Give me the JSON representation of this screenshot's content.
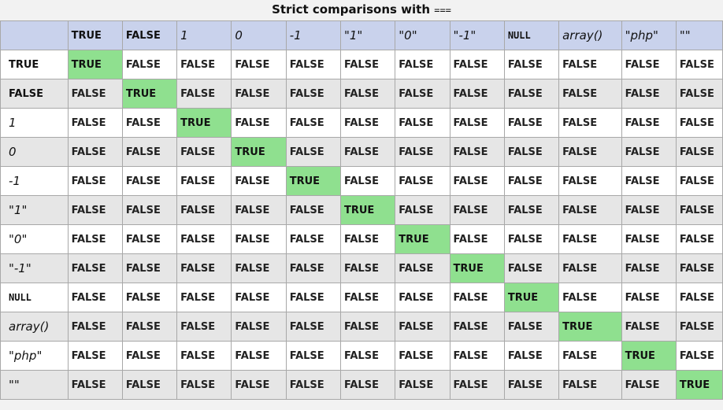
{
  "title": {
    "text": "Strict comparisons with ",
    "operator": "==="
  },
  "columns": [
    {
      "label": "TRUE",
      "style": "bold"
    },
    {
      "label": "FALSE",
      "style": "bold"
    },
    {
      "label": "1",
      "style": "italic"
    },
    {
      "label": "0",
      "style": "italic"
    },
    {
      "label": "-1",
      "style": "italic"
    },
    {
      "label": "\"1\"",
      "style": "italic"
    },
    {
      "label": "\"0\"",
      "style": "italic"
    },
    {
      "label": "\"-1\"",
      "style": "italic"
    },
    {
      "label": "NULL",
      "style": "mono"
    },
    {
      "label": "array()",
      "style": "italic"
    },
    {
      "label": "\"php\"",
      "style": "italic"
    },
    {
      "label": "\"\"",
      "style": "italic"
    }
  ],
  "rows": [
    {
      "label": "TRUE",
      "style": "bold",
      "values": [
        "TRUE",
        "FALSE",
        "FALSE",
        "FALSE",
        "FALSE",
        "FALSE",
        "FALSE",
        "FALSE",
        "FALSE",
        "FALSE",
        "FALSE",
        "FALSE"
      ]
    },
    {
      "label": "FALSE",
      "style": "bold",
      "values": [
        "FALSE",
        "TRUE",
        "FALSE",
        "FALSE",
        "FALSE",
        "FALSE",
        "FALSE",
        "FALSE",
        "FALSE",
        "FALSE",
        "FALSE",
        "FALSE"
      ]
    },
    {
      "label": "1",
      "style": "italic",
      "values": [
        "FALSE",
        "FALSE",
        "TRUE",
        "FALSE",
        "FALSE",
        "FALSE",
        "FALSE",
        "FALSE",
        "FALSE",
        "FALSE",
        "FALSE",
        "FALSE"
      ]
    },
    {
      "label": "0",
      "style": "italic",
      "values": [
        "FALSE",
        "FALSE",
        "FALSE",
        "TRUE",
        "FALSE",
        "FALSE",
        "FALSE",
        "FALSE",
        "FALSE",
        "FALSE",
        "FALSE",
        "FALSE"
      ]
    },
    {
      "label": "-1",
      "style": "italic",
      "values": [
        "FALSE",
        "FALSE",
        "FALSE",
        "FALSE",
        "TRUE",
        "FALSE",
        "FALSE",
        "FALSE",
        "FALSE",
        "FALSE",
        "FALSE",
        "FALSE"
      ]
    },
    {
      "label": "\"1\"",
      "style": "italic",
      "values": [
        "FALSE",
        "FALSE",
        "FALSE",
        "FALSE",
        "FALSE",
        "TRUE",
        "FALSE",
        "FALSE",
        "FALSE",
        "FALSE",
        "FALSE",
        "FALSE"
      ]
    },
    {
      "label": "\"0\"",
      "style": "italic",
      "values": [
        "FALSE",
        "FALSE",
        "FALSE",
        "FALSE",
        "FALSE",
        "FALSE",
        "TRUE",
        "FALSE",
        "FALSE",
        "FALSE",
        "FALSE",
        "FALSE"
      ]
    },
    {
      "label": "\"-1\"",
      "style": "italic",
      "values": [
        "FALSE",
        "FALSE",
        "FALSE",
        "FALSE",
        "FALSE",
        "FALSE",
        "FALSE",
        "TRUE",
        "FALSE",
        "FALSE",
        "FALSE",
        "FALSE"
      ]
    },
    {
      "label": "NULL",
      "style": "mono",
      "values": [
        "FALSE",
        "FALSE",
        "FALSE",
        "FALSE",
        "FALSE",
        "FALSE",
        "FALSE",
        "FALSE",
        "TRUE",
        "FALSE",
        "FALSE",
        "FALSE"
      ]
    },
    {
      "label": "array()",
      "style": "italic",
      "values": [
        "FALSE",
        "FALSE",
        "FALSE",
        "FALSE",
        "FALSE",
        "FALSE",
        "FALSE",
        "FALSE",
        "FALSE",
        "TRUE",
        "FALSE",
        "FALSE"
      ]
    },
    {
      "label": "\"php\"",
      "style": "italic",
      "values": [
        "FALSE",
        "FALSE",
        "FALSE",
        "FALSE",
        "FALSE",
        "FALSE",
        "FALSE",
        "FALSE",
        "FALSE",
        "FALSE",
        "TRUE",
        "FALSE"
      ]
    },
    {
      "label": "\"\"",
      "style": "italic",
      "values": [
        "FALSE",
        "FALSE",
        "FALSE",
        "FALSE",
        "FALSE",
        "FALSE",
        "FALSE",
        "FALSE",
        "FALSE",
        "FALSE",
        "FALSE",
        "TRUE"
      ]
    }
  ],
  "colors": {
    "header_bg": "#c9d2ec",
    "true_bg": "#8fe08f",
    "row_odd": "#ffffff",
    "row_even": "#e6e6e6",
    "border": "#a8a8a8"
  }
}
